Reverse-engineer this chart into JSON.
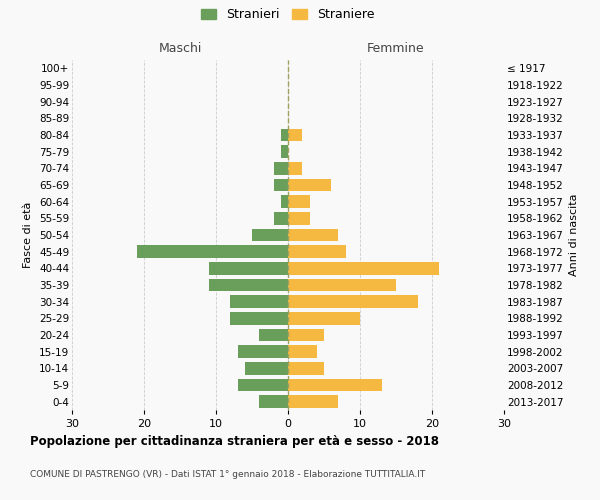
{
  "age_groups": [
    "100+",
    "95-99",
    "90-94",
    "85-89",
    "80-84",
    "75-79",
    "70-74",
    "65-69",
    "60-64",
    "55-59",
    "50-54",
    "45-49",
    "40-44",
    "35-39",
    "30-34",
    "25-29",
    "20-24",
    "15-19",
    "10-14",
    "5-9",
    "0-4"
  ],
  "birth_years": [
    "≤ 1917",
    "1918-1922",
    "1923-1927",
    "1928-1932",
    "1933-1937",
    "1938-1942",
    "1943-1947",
    "1948-1952",
    "1953-1957",
    "1958-1962",
    "1963-1967",
    "1968-1972",
    "1973-1977",
    "1978-1982",
    "1983-1987",
    "1988-1992",
    "1993-1997",
    "1998-2002",
    "2003-2007",
    "2008-2012",
    "2013-2017"
  ],
  "males": [
    0,
    0,
    0,
    0,
    1,
    1,
    2,
    2,
    1,
    2,
    5,
    21,
    11,
    11,
    8,
    8,
    4,
    7,
    6,
    7,
    4
  ],
  "females": [
    0,
    0,
    0,
    0,
    2,
    0,
    2,
    6,
    3,
    3,
    7,
    8,
    21,
    15,
    18,
    10,
    5,
    4,
    5,
    13,
    7
  ],
  "male_color": "#6a9e5b",
  "female_color": "#f5b942",
  "background_color": "#f9f9f9",
  "grid_color": "#cccccc",
  "dashed_line_color": "#a0a060",
  "xlim": 30,
  "title": "Popolazione per cittadinanza straniera per età e sesso - 2018",
  "subtitle": "COMUNE DI PASTRENGO (VR) - Dati ISTAT 1° gennaio 2018 - Elaborazione TUTTITALIA.IT",
  "legend_stranieri": "Stranieri",
  "legend_straniere": "Straniere",
  "label_maschi": "Maschi",
  "label_femmine": "Femmine",
  "ylabel_left": "Fasce di età",
  "ylabel_right": "Anni di nascita",
  "xtick_labels": [
    "30",
    "20",
    "10",
    "0",
    "10",
    "20",
    "30"
  ]
}
